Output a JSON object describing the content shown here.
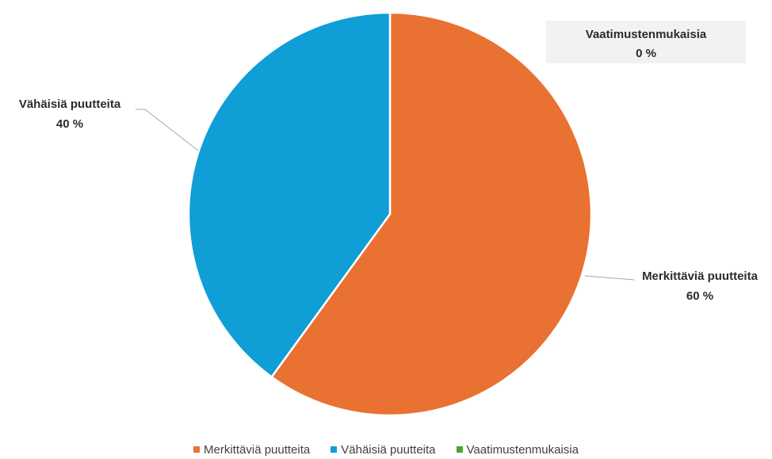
{
  "chart_data": {
    "type": "pie",
    "title": "",
    "categories": [
      "Merkittäviä puutteita",
      "Vähäisiä puutteita",
      "Vaatimustenmukaisia"
    ],
    "values": [
      60,
      40,
      0
    ],
    "data_labels": [
      "60 %",
      "40 %",
      "0 %"
    ],
    "colors": [
      "#E97132",
      "#0F9ED5",
      "#4EA72E"
    ],
    "legend_position": "bottom"
  }
}
